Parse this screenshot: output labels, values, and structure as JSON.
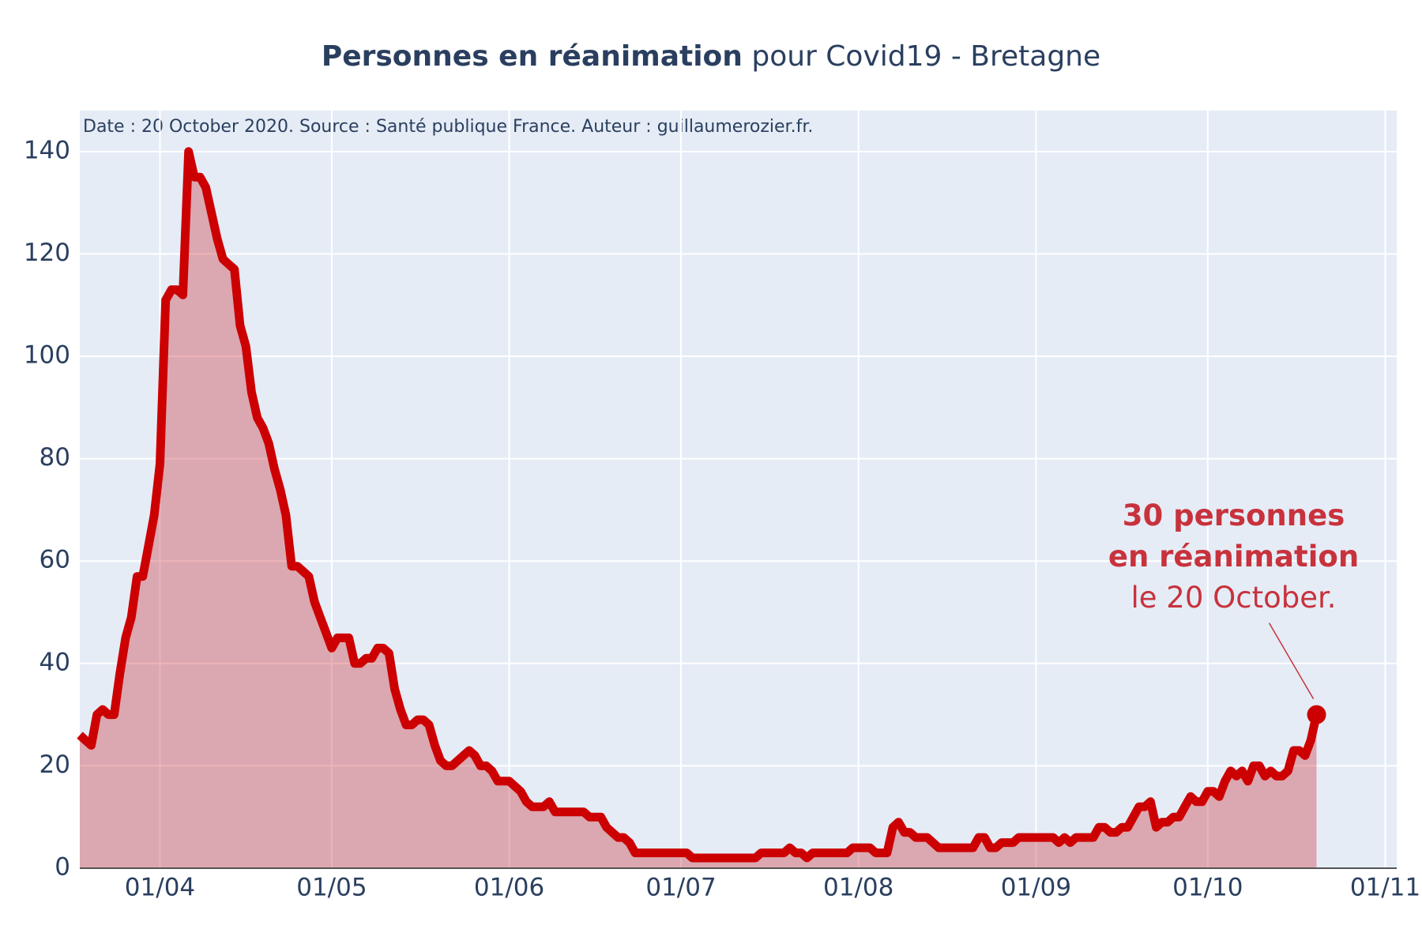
{
  "chart_data": {
    "type": "area",
    "title": "Personnes en réanimation",
    "title_rest": "pour Covid19 - Bretagne",
    "subtitle": "Date : 20 October 2020. Source : Santé publique France. Auteur : guillaumerozier.fr.",
    "x": [
      "18/03",
      "19/03",
      "20/03",
      "21/03",
      "22/03",
      "23/03",
      "24/03",
      "25/03",
      "26/03",
      "27/03",
      "28/03",
      "29/03",
      "30/03",
      "31/03",
      "01/04",
      "02/04",
      "03/04",
      "04/04",
      "05/04",
      "06/04",
      "07/04",
      "08/04",
      "09/04",
      "10/04",
      "11/04",
      "12/04",
      "13/04",
      "14/04",
      "15/04",
      "16/04",
      "17/04",
      "18/04",
      "19/04",
      "20/04",
      "21/04",
      "22/04",
      "23/04",
      "24/04",
      "25/04",
      "26/04",
      "27/04",
      "28/04",
      "29/04",
      "30/04",
      "01/05",
      "02/05",
      "03/05",
      "04/05",
      "05/05",
      "06/05",
      "07/05",
      "08/05",
      "09/05",
      "10/05",
      "11/05",
      "12/05",
      "13/05",
      "14/05",
      "15/05",
      "16/05",
      "17/05",
      "18/05",
      "19/05",
      "20/05",
      "21/05",
      "22/05",
      "23/05",
      "24/05",
      "25/05",
      "26/05",
      "27/05",
      "28/05",
      "29/05",
      "30/05",
      "31/05",
      "01/06",
      "02/06",
      "03/06",
      "04/06",
      "05/06",
      "06/06",
      "07/06",
      "08/06",
      "09/06",
      "10/06",
      "11/06",
      "12/06",
      "13/06",
      "14/06",
      "15/06",
      "16/06",
      "17/06",
      "18/06",
      "19/06",
      "20/06",
      "21/06",
      "22/06",
      "23/06",
      "24/06",
      "25/06",
      "26/06",
      "27/06",
      "28/06",
      "29/06",
      "30/06",
      "01/07",
      "02/07",
      "03/07",
      "04/07",
      "05/07",
      "06/07",
      "07/07",
      "08/07",
      "09/07",
      "10/07",
      "11/07",
      "12/07",
      "13/07",
      "14/07",
      "15/07",
      "16/07",
      "17/07",
      "18/07",
      "19/07",
      "20/07",
      "21/07",
      "22/07",
      "23/07",
      "24/07",
      "25/07",
      "26/07",
      "27/07",
      "28/07",
      "29/07",
      "30/07",
      "31/07",
      "01/08",
      "02/08",
      "03/08",
      "04/08",
      "05/08",
      "06/08",
      "07/08",
      "08/08",
      "09/08",
      "10/08",
      "11/08",
      "12/08",
      "13/08",
      "14/08",
      "15/08",
      "16/08",
      "17/08",
      "18/08",
      "19/08",
      "20/08",
      "21/08",
      "22/08",
      "23/08",
      "24/08",
      "25/08",
      "26/08",
      "27/08",
      "28/08",
      "29/08",
      "30/08",
      "31/08",
      "01/09",
      "02/09",
      "03/09",
      "04/09",
      "05/09",
      "06/09",
      "07/09",
      "08/09",
      "09/09",
      "10/09",
      "11/09",
      "12/09",
      "13/09",
      "14/09",
      "15/09",
      "16/09",
      "17/09",
      "18/09",
      "19/09",
      "20/09",
      "21/09",
      "22/09",
      "23/09",
      "24/09",
      "25/09",
      "26/09",
      "27/09",
      "28/09",
      "29/09",
      "30/09",
      "01/10",
      "02/10",
      "03/10",
      "04/10",
      "05/10",
      "06/10",
      "07/10",
      "08/10",
      "09/10",
      "10/10",
      "11/10",
      "12/10",
      "13/10",
      "14/10",
      "15/10",
      "16/10",
      "17/10",
      "18/10",
      "19/10",
      "20/10"
    ],
    "series": [
      {
        "name": "Personnes en réanimation",
        "color": "#cc0000",
        "fill_color": "rgba(200,40,50,0.35)",
        "values": [
          26,
          25,
          24,
          30,
          31,
          30,
          30,
          38,
          45,
          49,
          57,
          57,
          63,
          69,
          79,
          111,
          113,
          113,
          112,
          140,
          135,
          135,
          133,
          128,
          123,
          119,
          118,
          117,
          106,
          102,
          93,
          88,
          86,
          83,
          78,
          74,
          69,
          59,
          59,
          58,
          57,
          52,
          49,
          46,
          43,
          45,
          45,
          45,
          40,
          40,
          41,
          41,
          43,
          43,
          42,
          35,
          31,
          28,
          28,
          29,
          29,
          28,
          24,
          21,
          20,
          20,
          21,
          22,
          23,
          22,
          20,
          20,
          19,
          17,
          17,
          17,
          16,
          15,
          13,
          12,
          12,
          12,
          13,
          11,
          11,
          11,
          11,
          11,
          11,
          10,
          10,
          10,
          8,
          7,
          6,
          6,
          5,
          3,
          3,
          3,
          3,
          3,
          3,
          3,
          3,
          3,
          3,
          2,
          2,
          2,
          2,
          2,
          2,
          2,
          2,
          2,
          2,
          2,
          2,
          3,
          3,
          3,
          3,
          3,
          4,
          3,
          3,
          2,
          3,
          3,
          3,
          3,
          3,
          3,
          3,
          4,
          4,
          4,
          4,
          3,
          3,
          3,
          8,
          9,
          7,
          7,
          6,
          6,
          6,
          5,
          4,
          4,
          4,
          4,
          4,
          4,
          4,
          6,
          6,
          4,
          4,
          5,
          5,
          5,
          6,
          6,
          6,
          6,
          6,
          6,
          6,
          5,
          6,
          5,
          6,
          6,
          6,
          6,
          8,
          8,
          7,
          7,
          8,
          8,
          10,
          12,
          12,
          13,
          8,
          9,
          9,
          10,
          10,
          12,
          14,
          13,
          13,
          15,
          15,
          14,
          17,
          19,
          18,
          19,
          17,
          20,
          20,
          18,
          19,
          18,
          18,
          19,
          23,
          23,
          22,
          25,
          30
        ]
      }
    ],
    "xlim": [
      "18/03",
      "03/11"
    ],
    "xticks": [
      "01/04",
      "01/05",
      "01/06",
      "01/07",
      "01/08",
      "01/09",
      "01/10",
      "01/11"
    ],
    "ylim": [
      0,
      148
    ],
    "yticks": [
      0,
      20,
      40,
      60,
      80,
      100,
      120,
      140
    ],
    "grid": true,
    "annotation": {
      "lines": [
        "30 personnes",
        "en réanimation",
        "le 20 October."
      ],
      "color": "#c8323c"
    }
  }
}
